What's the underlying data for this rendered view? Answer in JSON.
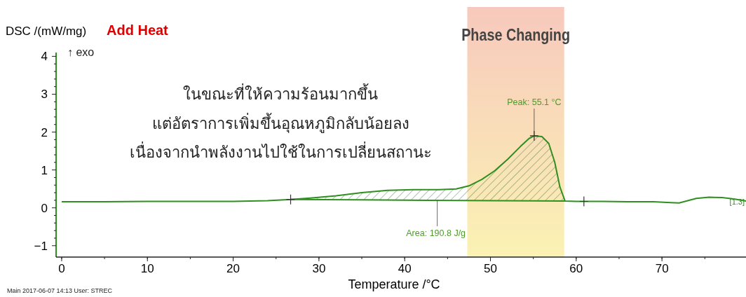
{
  "chart_data": {
    "type": "line",
    "xlabel": "Temperature /°C",
    "ylabel": "DSC /(mW/mg)",
    "xlim": [
      -0.65,
      79.8
    ],
    "ylim": [
      -1.3,
      4.1
    ],
    "xticks": [
      0,
      10,
      20,
      30,
      40,
      50,
      60,
      70
    ],
    "yticks": [
      -1,
      0,
      1,
      2,
      3,
      4
    ],
    "grid": false,
    "legend": false,
    "series": [
      {
        "name": "[1.3]",
        "color": "#2f8f1f",
        "x": [
          0,
          5,
          10,
          15,
          20,
          24,
          26.7,
          29,
          32,
          35,
          38,
          41,
          44,
          46,
          47.5,
          49,
          50.5,
          52,
          53.5,
          54.5,
          55.1,
          56,
          56.8,
          57.5,
          58.1,
          58.7,
          60,
          63,
          66,
          69,
          71,
          72,
          73,
          74,
          75.5,
          77,
          78.5,
          79.8
        ],
        "values": [
          0.16,
          0.16,
          0.17,
          0.17,
          0.17,
          0.19,
          0.22,
          0.26,
          0.32,
          0.4,
          0.46,
          0.48,
          0.48,
          0.5,
          0.58,
          0.75,
          0.98,
          1.28,
          1.62,
          1.83,
          1.9,
          1.88,
          1.7,
          1.2,
          0.55,
          0.18,
          0.17,
          0.17,
          0.16,
          0.16,
          0.14,
          0.13,
          0.19,
          0.25,
          0.28,
          0.27,
          0.23,
          0.18
        ]
      },
      {
        "type": "area",
        "color": "#2f6f2f",
        "x": [
          26.7,
          29,
          32,
          35,
          38,
          41,
          44,
          46,
          47.5,
          49,
          50.5,
          52,
          53.5,
          54.5,
          55.1,
          56,
          56.8,
          57.5,
          58.1,
          58.7
        ],
        "values": [
          0.22,
          0.26,
          0.32,
          0.4,
          0.46,
          0.48,
          0.48,
          0.5,
          0.58,
          0.75,
          0.98,
          1.28,
          1.62,
          1.83,
          1.9,
          1.88,
          1.7,
          1.2,
          0.55,
          0.18
        ]
      },
      {
        "type": "line",
        "color": "#2f8f1f",
        "x": [
          26.7,
          34.7,
          42.7,
          50.7,
          58.7
        ],
        "values": [
          0.22,
          0.21,
          0.2,
          0.19,
          0.18
        ]
      },
      {
        "type": "scatter",
        "marker": "cross",
        "color": "#333333",
        "x": [
          26.7,
          55.1,
          60.9
        ],
        "values": [
          0.22,
          1.9,
          0.17
        ]
      }
    ],
    "bands": [
      {
        "axis": "x",
        "from": 47.3,
        "to": 58.6,
        "label": "Phase Changing",
        "color": "#f7c9bd"
      }
    ],
    "annotations": [
      "Add Heat",
      "↑ exo",
      "ในขณะที่ให้ความร้อนมากขึ้น",
      "แต่อัตราการเพิ่มขึ้นอุณหภูมิกลับน้อยลง",
      "เนื่องจากนำพลังงานไปใช้ในการเปลี่ยนสถานะ",
      {
        "text": "Peak: 55.1 °C",
        "x": 55.1,
        "y": 1.9
      },
      {
        "text": "Area: 190.8 J/g",
        "x": 43.8,
        "y": 0.2
      },
      "Main   2017-06-07 14:13   User: STREC"
    ]
  }
}
